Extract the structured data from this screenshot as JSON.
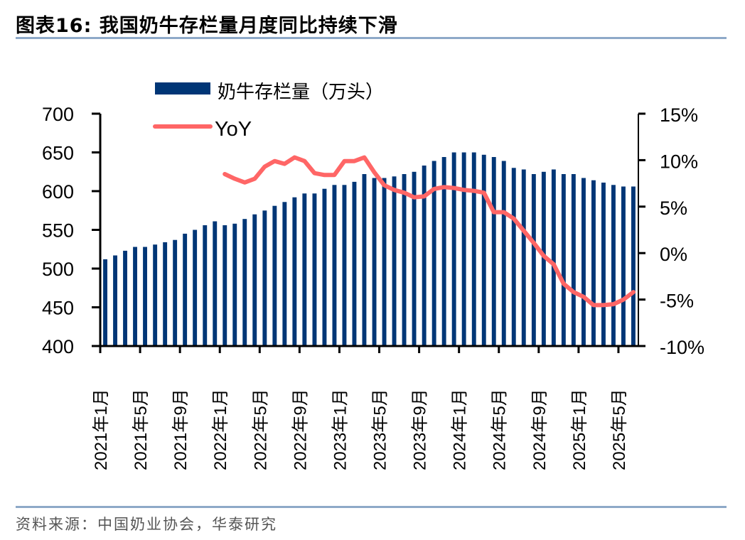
{
  "title": "图表16:   我国奶牛存栏量月度同比持续下滑",
  "source": "资料来源：中国奶业协会，华泰研究",
  "colors": {
    "bar": "#003676",
    "line": "#ff6666",
    "rule": "#8ea9c8"
  },
  "chart_data": {
    "type": "bar+line",
    "title": "我国奶牛存栏量月度同比持续下滑",
    "legend": [
      "奶牛存栏量（万头）",
      "YoY"
    ],
    "legend_position": "top-left",
    "left_axis": {
      "ylim": [
        400,
        700
      ],
      "ticks": [
        "700",
        "650",
        "600",
        "550",
        "500",
        "450",
        "400"
      ]
    },
    "right_axis": {
      "ylim": [
        -10,
        15
      ],
      "ticks": [
        "15%",
        "10%",
        "5%",
        "0%",
        "-5%",
        "-10%"
      ]
    },
    "x_tick_labels": [
      "2021年1月",
      "2021年5月",
      "2021年9月",
      "2022年1月",
      "2022年5月",
      "2022年9月",
      "2023年1月",
      "2023年5月",
      "2023年9月",
      "2024年1月",
      "2024年5月",
      "2024年9月",
      "2025年1月",
      "2025年5月"
    ],
    "categories": [
      "2021-01",
      "2021-02",
      "2021-03",
      "2021-04",
      "2021-05",
      "2021-06",
      "2021-07",
      "2021-08",
      "2021-09",
      "2021-10",
      "2021-11",
      "2021-12",
      "2022-01",
      "2022-02",
      "2022-03",
      "2022-04",
      "2022-05",
      "2022-06",
      "2022-07",
      "2022-08",
      "2022-09",
      "2022-10",
      "2022-11",
      "2022-12",
      "2023-01",
      "2023-02",
      "2023-03",
      "2023-04",
      "2023-05",
      "2023-06",
      "2023-07",
      "2023-08",
      "2023-09",
      "2023-10",
      "2023-11",
      "2023-12",
      "2024-01",
      "2024-02",
      "2024-03",
      "2024-04",
      "2024-05",
      "2024-06",
      "2024-07",
      "2024-08",
      "2024-09",
      "2024-10",
      "2024-11",
      "2024-12",
      "2025-01",
      "2025-02",
      "2025-03",
      "2025-04",
      "2025-05",
      "2025-06"
    ],
    "series": [
      {
        "name": "奶牛存栏量（万头）",
        "type": "bar",
        "axis": "left",
        "values": [
          512,
          517,
          523,
          528,
          528,
          531,
          534,
          537,
          545,
          550,
          556,
          561,
          556,
          558,
          564,
          570,
          575,
          581,
          586,
          592,
          597,
          597,
          603,
          608,
          608,
          612,
          622,
          617,
          617,
          619,
          622,
          625,
          633,
          639,
          644,
          650,
          650,
          650,
          647,
          644,
          639,
          630,
          628,
          622,
          625,
          628,
          622,
          622,
          617,
          614,
          611,
          608,
          606,
          606
        ]
      },
      {
        "name": "YoY",
        "type": "line",
        "axis": "right",
        "values": [
          null,
          null,
          null,
          null,
          null,
          null,
          null,
          null,
          null,
          null,
          null,
          null,
          8.5,
          8.0,
          7.6,
          8.0,
          9.3,
          9.9,
          9.6,
          10.3,
          9.9,
          8.6,
          8.4,
          8.4,
          9.9,
          9.9,
          10.3,
          8.7,
          7.3,
          6.8,
          6.5,
          6.0,
          6.1,
          6.9,
          7.1,
          7.0,
          6.8,
          6.7,
          6.5,
          4.4,
          4.4,
          3.7,
          2.4,
          1.1,
          -0.3,
          -1.2,
          -3.3,
          -4.2,
          -4.7,
          -5.6,
          -5.6,
          -5.5,
          -5.0,
          -4.2
        ]
      }
    ]
  }
}
